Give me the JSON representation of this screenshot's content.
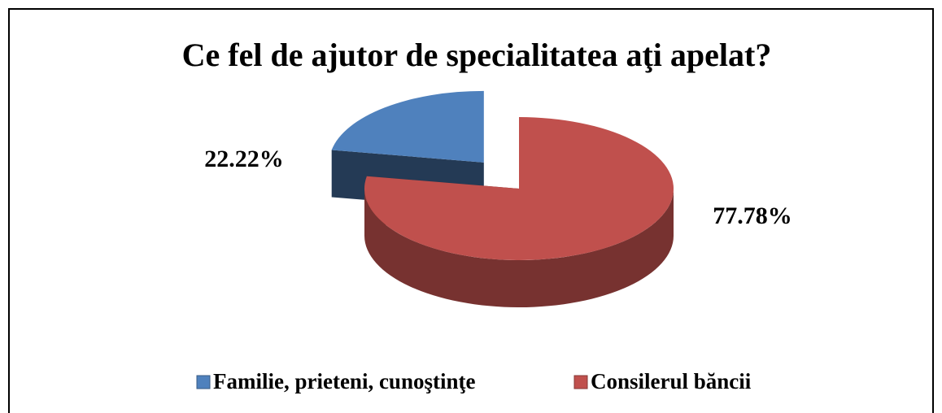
{
  "chart_data": {
    "type": "pie3d",
    "title": "Ce fel de ajutor de specialitatea aţi apelat?",
    "categories": [
      "Familie, prieteni, cunoştinţe",
      "Consilerul băncii"
    ],
    "values": [
      22.22,
      77.78
    ],
    "value_labels": [
      "22.22%",
      "77.78%"
    ],
    "colors": [
      "#4f81bd",
      "#c0504d"
    ],
    "legend": "bottom"
  }
}
